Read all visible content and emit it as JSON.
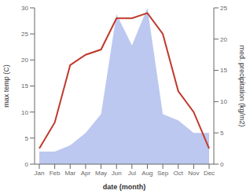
{
  "chart_data": {
    "type": "line",
    "xlabel": "date (month)",
    "ylabel": "max temp (C)",
    "y2label": "med. precipitation (kg/m2)",
    "categories": [
      "Jan",
      "Feb",
      "Mar",
      "Apr",
      "May",
      "Jun",
      "Jul",
      "Aug",
      "Sep",
      "Oct",
      "Nov",
      "Dec"
    ],
    "series": [
      {
        "type": "area",
        "axis": "y2",
        "color": "#bdc8f0",
        "values": [
          2,
          2,
          3,
          5,
          8,
          24,
          19,
          25,
          8,
          7,
          5,
          5
        ]
      },
      {
        "type": "line",
        "color": "#c0392b",
        "values": [
          3,
          8,
          19,
          21,
          22,
          28,
          28,
          29,
          25,
          14,
          10,
          3
        ]
      }
    ],
    "ylim": [
      0,
      30
    ],
    "yticks": [
      0,
      5,
      10,
      15,
      20,
      25,
      30
    ],
    "y2lim": [
      0,
      25
    ],
    "y2ticks": [
      0,
      5,
      10,
      15,
      20,
      25
    ],
    "grid": false
  }
}
